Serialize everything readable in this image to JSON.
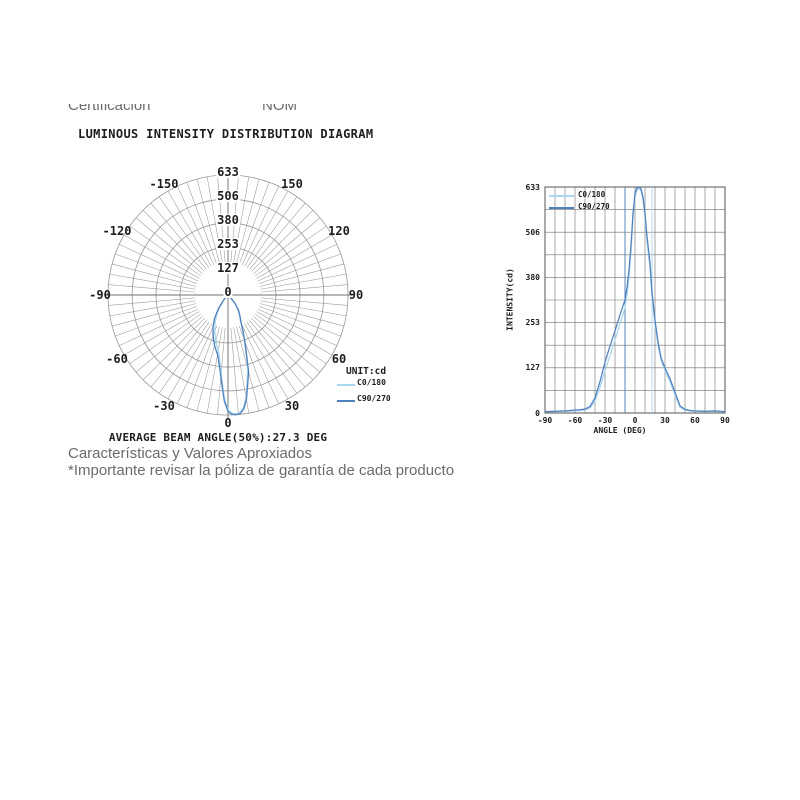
{
  "page": {
    "header_left": "Certificación",
    "header_right": "NOM",
    "title": "LUMINOUS INTENSITY DISTRIBUTION DIAGRAM",
    "beam_angle_caption": "AVERAGE BEAM ANGLE(50%):27.3 DEG",
    "footer_line1": "Características y Valores Aproxiados",
    "footer_line2": "*Importante revisar la póliza de garantía de cada producto"
  },
  "colors": {
    "c0_180": "#a9d7f1",
    "c90_270": "#4f81bd",
    "polar_grid": "#989898",
    "polar_axis": "#6f6f6f",
    "line_grid": "#6f6f6f",
    "line_border": "#555555"
  },
  "chart_data": [
    {
      "type": "polar",
      "title": "LUMINOUS INTENSITY DISTRIBUTION DIAGRAM",
      "unit_label": "UNIT:cd",
      "caption": "AVERAGE BEAM ANGLE(50%):27.3 DEG",
      "rmax": 633,
      "radial_ticks": [
        0,
        127,
        253,
        380,
        506,
        633
      ],
      "angle_ticks": [
        -150,
        -120,
        -90,
        -60,
        -30,
        0,
        30,
        60,
        90,
        120,
        150
      ],
      "spoke_step_deg": 5,
      "legend": [
        {
          "name": "C0/180",
          "color": "#a9d7f1"
        },
        {
          "name": "C90/270",
          "color": "#4f81bd"
        }
      ]
    },
    {
      "type": "line",
      "xlabel": "ANGLE (DEG)",
      "ylabel": "INTENSITY(cd)",
      "xlim": [
        -90,
        90
      ],
      "ylim": [
        0,
        633
      ],
      "x_ticks": [
        -90,
        -60,
        -30,
        0,
        30,
        60,
        90
      ],
      "y_ticks": [
        0,
        127,
        253,
        380,
        506,
        633
      ],
      "grid": "on",
      "legend_position": "top-left",
      "legend": [
        {
          "name": "C0/180",
          "color": "#a9d7f1"
        },
        {
          "name": "C90/270",
          "color": "#4f81bd"
        }
      ],
      "beam_markers": [
        {
          "angle": -10,
          "color": "#4f81bd"
        },
        {
          "angle": 17,
          "color": "#a9d7f1"
        }
      ],
      "x": [
        -90,
        -80,
        -70,
        -60,
        -55,
        -50,
        -45,
        -40,
        -35,
        -30,
        -25,
        -20,
        -15,
        -12,
        -10,
        -8,
        -6,
        -4,
        -2,
        0,
        2,
        4,
        6,
        8,
        10,
        12,
        15,
        17,
        20,
        23,
        26,
        30,
        35,
        40,
        45,
        50,
        55,
        60,
        70,
        80,
        90
      ],
      "series": [
        {
          "name": "C0/180",
          "color": "#a9d7f1",
          "y": [
            3,
            4,
            5,
            6,
            7,
            9,
            14,
            33,
            72,
            118,
            162,
            204,
            250,
            276,
            296,
            330,
            380,
            452,
            545,
            605,
            624,
            630,
            622,
            596,
            548,
            480,
            405,
            325,
            248,
            190,
            148,
            118,
            88,
            50,
            16,
            8,
            6,
            5,
            4,
            5,
            3
          ]
        },
        {
          "name": "C90/270",
          "color": "#4f81bd",
          "y": [
            4,
            5,
            6,
            8,
            9,
            11,
            18,
            42,
            88,
            142,
            188,
            230,
            275,
            300,
            318,
            352,
            400,
            470,
            560,
            615,
            630,
            633,
            628,
            605,
            560,
            495,
            420,
            340,
            260,
            200,
            155,
            126,
            96,
            58,
            20,
            10,
            7,
            6,
            5,
            6,
            4
          ]
        }
      ]
    }
  ]
}
